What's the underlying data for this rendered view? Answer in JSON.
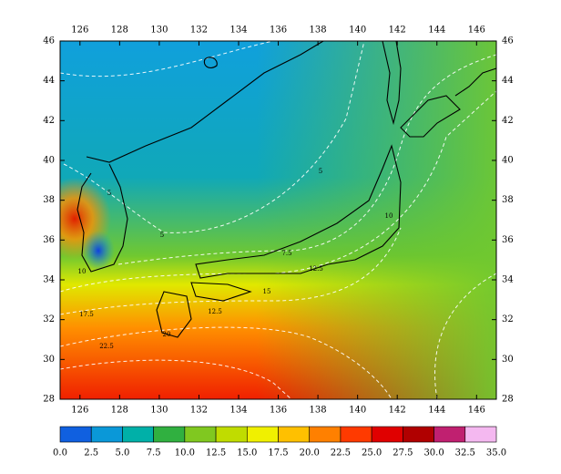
{
  "map": {
    "x_ticks": [
      "126",
      "128",
      "130",
      "132",
      "134",
      "136",
      "138",
      "140",
      "142",
      "144",
      "146"
    ],
    "y_ticks": [
      "28",
      "30",
      "32",
      "34",
      "36",
      "38",
      "40",
      "42",
      "44",
      "46"
    ],
    "contour_labels": [
      "5",
      "5",
      "5",
      "7.5",
      "10",
      "10",
      "12.5",
      "12.5",
      "15",
      "17.5",
      "20",
      "22.5"
    ],
    "colorbar": {
      "labels": [
        "0.0",
        "2.5",
        "5.0",
        "7.5",
        "10.0",
        "12.5",
        "15.0",
        "17.5",
        "20.0",
        "22.5",
        "25.0",
        "27.5",
        "30.0",
        "32.5",
        "35.0"
      ],
      "colors": [
        "#1060e0",
        "#0a98d8",
        "#00b0a8",
        "#30b040",
        "#80c820",
        "#c0dc00",
        "#f0f000",
        "#ffc000",
        "#ff8000",
        "#ff3a00",
        "#e00000",
        "#b00000",
        "#c02070",
        "#f4b8f0"
      ]
    }
  }
}
